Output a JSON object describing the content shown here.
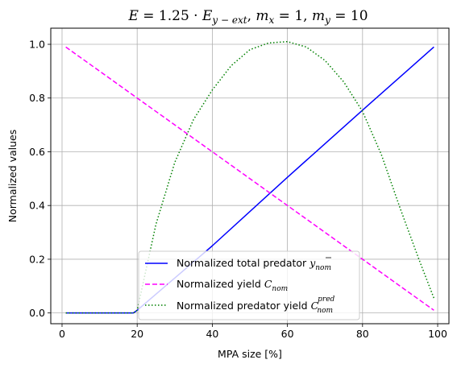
{
  "chart_data": {
    "type": "line",
    "title": {
      "lhs": "E",
      "eq": " = 1.25 · ",
      "base": "E",
      "sub": "y − ext",
      "mx_label": "m",
      "mx_sub": "x",
      "mx_val": " = 1",
      "my_label": "m",
      "my_sub": "y",
      "my_val": " = 10"
    },
    "xlabel": "MPA size [%]",
    "ylabel": "Normalized values",
    "xlim": [
      -3,
      103
    ],
    "ylim": [
      -0.04,
      1.06
    ],
    "xticks": [
      0,
      20,
      40,
      60,
      80,
      100
    ],
    "yticks": [
      0.0,
      0.2,
      0.4,
      0.6,
      0.8,
      1.0
    ],
    "ytick_labels": [
      "0.0",
      "0.2",
      "0.4",
      "0.6",
      "0.8",
      "1.0"
    ],
    "grid": true,
    "legend_position": "bottom-center",
    "series": [
      {
        "name": "Normalized total predator",
        "name_math": "y",
        "name_sub": "nom",
        "color": "#0000ff",
        "style": "solid",
        "x": [
          1,
          19,
          20,
          40,
          60,
          80,
          99
        ],
        "y": [
          0.0,
          0.0,
          0.01,
          0.25,
          0.505,
          0.755,
          0.99
        ]
      },
      {
        "name": "Normalized yield",
        "name_math": "C",
        "name_sub": "nom",
        "color": "#ff00ff",
        "style": "dashed",
        "x": [
          1,
          20,
          40,
          60,
          80,
          99
        ],
        "y": [
          0.99,
          0.8,
          0.6,
          0.4,
          0.2,
          0.01
        ]
      },
      {
        "name": "Normalized predator yield",
        "name_math": "C",
        "name_sub": "nom",
        "name_sup": "pred",
        "color": "#008000",
        "style": "dotted",
        "x": [
          1,
          19,
          20,
          25,
          30,
          35,
          40,
          45,
          50,
          55,
          60,
          65,
          70,
          75,
          80,
          85,
          90,
          95,
          99
        ],
        "y": [
          0.0,
          0.0,
          0.01,
          0.33,
          0.56,
          0.72,
          0.83,
          0.92,
          0.98,
          1.005,
          1.01,
          0.99,
          0.94,
          0.86,
          0.75,
          0.59,
          0.39,
          0.2,
          0.055
        ]
      }
    ]
  }
}
